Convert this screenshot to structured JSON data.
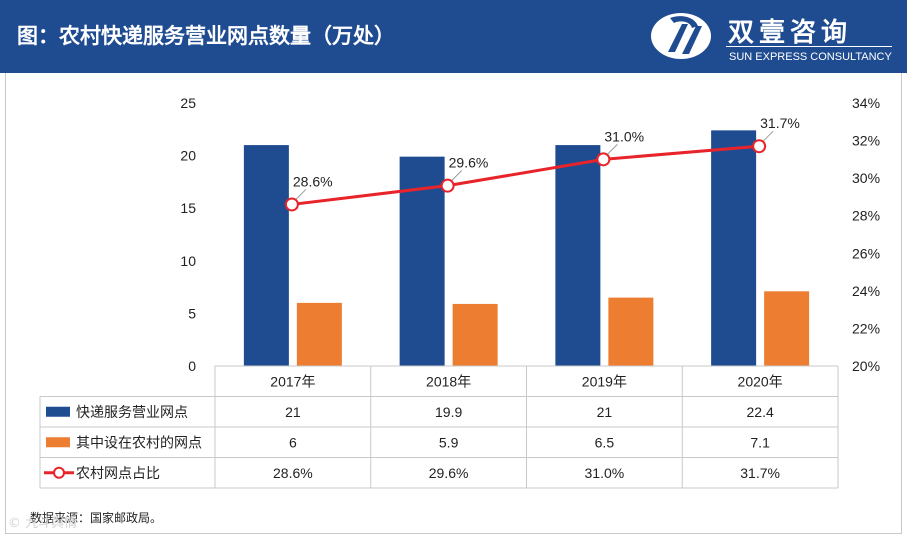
{
  "header": {
    "title": "图：农村快递服务营业网点数量（万处）",
    "brand_name": "双壹咨询",
    "brand_sub": "SUN EXPRESS CONSULTANCY"
  },
  "footer": {
    "source": "数据来源：国家邮政局。",
    "watermark": "© 九斗舆情"
  },
  "chart_data": {
    "type": "bar",
    "categories": [
      "2017年",
      "2018年",
      "2019年",
      "2020年"
    ],
    "series": [
      {
        "name": "快递服务营业网点",
        "type": "bar",
        "axis": "left",
        "color": "#1f4c91",
        "values": [
          21,
          19.9,
          21,
          22.4
        ],
        "labels": [
          "21",
          "19.9",
          "21",
          "22.4"
        ]
      },
      {
        "name": "其中设在农村的网点",
        "type": "bar",
        "axis": "left",
        "color": "#ed7d31",
        "values": [
          6,
          5.9,
          6.5,
          7.1
        ],
        "labels": [
          "6",
          "5.9",
          "6.5",
          "7.1"
        ]
      },
      {
        "name": "农村网点占比",
        "type": "line",
        "axis": "right",
        "color": "#e8242a",
        "values": [
          28.6,
          29.6,
          31.0,
          31.7
        ],
        "labels": [
          "28.6%",
          "29.6%",
          "31.0%",
          "31.7%"
        ]
      }
    ],
    "y_left": {
      "min": 0,
      "max": 25,
      "ticks": [
        "0",
        "5",
        "10",
        "15",
        "20",
        "25"
      ]
    },
    "y_right": {
      "min": 20,
      "max": 34,
      "ticks": [
        "20%",
        "22%",
        "24%",
        "26%",
        "28%",
        "30%",
        "32%",
        "34%"
      ]
    },
    "legend": "data-table-below",
    "grid": false
  }
}
